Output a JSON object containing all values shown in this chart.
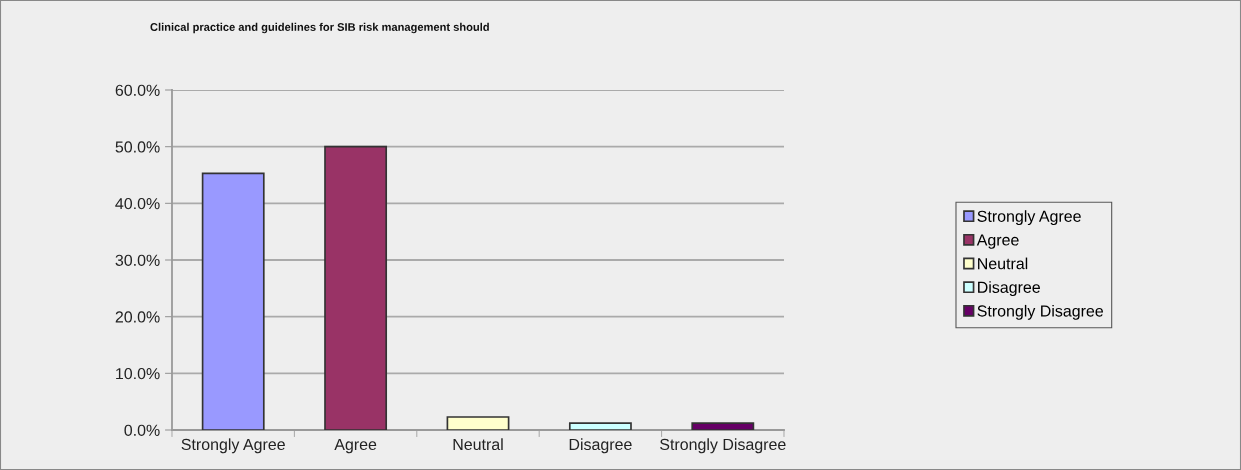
{
  "chart_data": {
    "type": "bar",
    "title": "Clinical practice and guidelines for SIB risk management should",
    "categories": [
      "Strongly Agree",
      "Agree",
      "Neutral",
      "Disagree",
      "Strongly Disagree"
    ],
    "series": [
      {
        "name": "Strongly Agree",
        "color": "#9999ff",
        "values": [
          45.3,
          null,
          null,
          null,
          null
        ]
      },
      {
        "name": "Agree",
        "color": "#993366",
        "values": [
          null,
          50.0,
          null,
          null,
          null
        ]
      },
      {
        "name": "Neutral",
        "color": "#ffffcc",
        "values": [
          null,
          null,
          2.3,
          null,
          null
        ]
      },
      {
        "name": "Disagree",
        "color": "#ccffff",
        "values": [
          null,
          null,
          null,
          1.2,
          null
        ]
      },
      {
        "name": "Strongly Disagree",
        "color": "#660066",
        "values": [
          null,
          null,
          null,
          null,
          1.2
        ]
      }
    ],
    "stacked": true,
    "ylim": [
      0,
      60
    ],
    "yticks": [
      {
        "value": 0,
        "label": "0.0%"
      },
      {
        "value": 10,
        "label": "10.0%"
      },
      {
        "value": 20,
        "label": "20.0%"
      },
      {
        "value": 30,
        "label": "30.0%"
      },
      {
        "value": 40,
        "label": "40.0%"
      },
      {
        "value": 50,
        "label": "50.0%"
      },
      {
        "value": 60,
        "label": "60.0%"
      }
    ],
    "grid": "y",
    "legend": "right"
  }
}
